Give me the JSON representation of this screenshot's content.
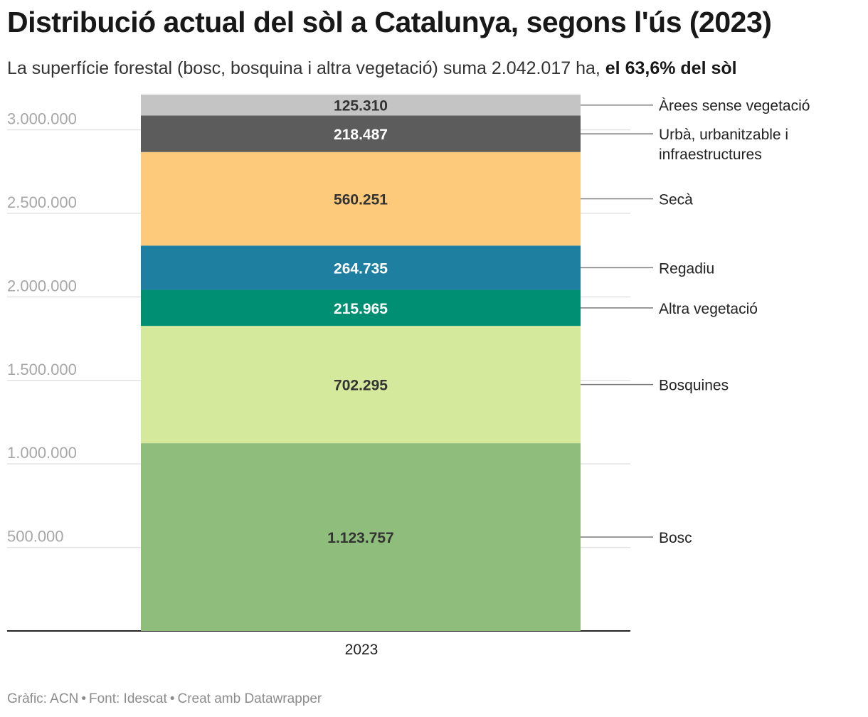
{
  "header": {
    "title": "Distribució actual del sòl a Catalunya, segons l'ús (2023)",
    "subtitle_text": "La superfície forestal (bosc, bosquina i altra vegetació) suma 2.042.017 ha,",
    "subtitle_bold": "el 63,6% del sòl"
  },
  "footer": {
    "grafic": "Gràfic: ACN",
    "font": "Font: Idescat",
    "creat": "Creat amb Datawrapper",
    "separator": "•"
  },
  "chart_data": {
    "type": "bar",
    "stacked": true,
    "categories": [
      "2023"
    ],
    "xlabel": "",
    "ylabel": "",
    "ylim": [
      0,
      3210800
    ],
    "y_ticks": [
      500000,
      1000000,
      1500000,
      2000000,
      2500000,
      3000000
    ],
    "y_tick_labels": [
      "500.000",
      "1.000.000",
      "1.500.000",
      "2.000.000",
      "2.500.000",
      "3.000.000"
    ],
    "grid": true,
    "legend_position": "right",
    "series": [
      {
        "name": "Bosc",
        "value": 1123757,
        "label": "1.123.757",
        "color": "#8fbd7c",
        "text_color": "#333333",
        "legend_lines": [
          "Bosc"
        ]
      },
      {
        "name": "Bosquines",
        "value": 702295,
        "label": "702.295",
        "color": "#d5e99c",
        "text_color": "#333333",
        "legend_lines": [
          "Bosquines"
        ]
      },
      {
        "name": "Altra vegetació",
        "value": 215965,
        "label": "215.965",
        "color": "#008f72",
        "text_color": "#ffffff",
        "legend_lines": [
          "Altra vegetació"
        ]
      },
      {
        "name": "Regadiu",
        "value": 264735,
        "label": "264.735",
        "color": "#1f7fa1",
        "text_color": "#ffffff",
        "legend_lines": [
          "Regadiu"
        ]
      },
      {
        "name": "Secà",
        "value": 560251,
        "label": "560.251",
        "color": "#fdca7b",
        "text_color": "#333333",
        "legend_lines": [
          "Secà"
        ]
      },
      {
        "name": "Urbà, urbanitzable i infraestructures",
        "value": 218487,
        "label": "218.487",
        "color": "#5c5c5c",
        "text_color": "#ffffff",
        "legend_lines": [
          "Urbà, urbanitzable i",
          "infraestructures"
        ]
      },
      {
        "name": "Àrees sense vegetació",
        "value": 125310,
        "label": "125.310",
        "color": "#c4c4c4",
        "text_color": "#333333",
        "legend_lines": [
          "Àrees sense vegetació"
        ]
      }
    ]
  }
}
